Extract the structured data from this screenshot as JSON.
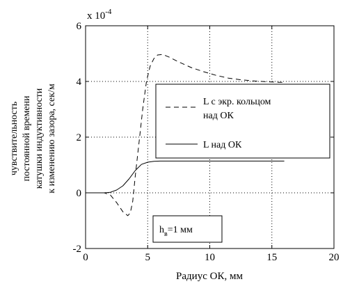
{
  "chart_data": {
    "type": "line",
    "xlabel": "Радиус ОК, мм",
    "ylabel_lines": [
      "чувствительность",
      "постоянной времени",
      "катушки индуктивности",
      "к изменению зазора, сек/м"
    ],
    "y_multiplier": "x 10",
    "y_multiplier_exp": "-4",
    "xlim": [
      0,
      20
    ],
    "ylim": [
      -2,
      6
    ],
    "x_ticks": [
      0,
      5,
      10,
      15,
      20
    ],
    "y_ticks": [
      -2,
      0,
      2,
      4,
      6
    ],
    "grid": true,
    "legend_position": "center-right",
    "series": [
      {
        "name": "L с экр. кольцом над ОК",
        "name_lines": [
          "L с экр. кольцом",
          "над ОК"
        ],
        "style": "dashed",
        "x": [
          0,
          1.5,
          2.0,
          2.5,
          3.0,
          3.4,
          3.6,
          3.8,
          4.0,
          4.3,
          4.6,
          4.9,
          5.2,
          5.5,
          5.8,
          6.2,
          6.7,
          7.5,
          8.5,
          9.5,
          10.5,
          11.5,
          12.5,
          13.5,
          14.5,
          15.5,
          16.0
        ],
        "y": [
          0,
          0,
          -0.08,
          -0.35,
          -0.68,
          -0.82,
          -0.72,
          -0.3,
          0.6,
          1.8,
          3.0,
          4.0,
          4.55,
          4.82,
          4.95,
          4.97,
          4.88,
          4.7,
          4.5,
          4.35,
          4.22,
          4.12,
          4.06,
          4.02,
          3.99,
          3.97,
          3.97
        ]
      },
      {
        "name": "L над ОК",
        "name_lines": [
          "L над ОК"
        ],
        "style": "solid",
        "x": [
          0,
          1.5,
          2.0,
          2.5,
          3.0,
          3.5,
          4.0,
          4.5,
          5.0,
          5.5,
          6.0,
          7.0,
          8.0,
          10.0,
          12.0,
          14.0,
          16.0
        ],
        "y": [
          0,
          0,
          0.02,
          0.1,
          0.25,
          0.5,
          0.8,
          1.02,
          1.1,
          1.13,
          1.14,
          1.14,
          1.14,
          1.14,
          1.14,
          1.14,
          1.14
        ]
      }
    ],
    "annotation": {
      "main": "h",
      "subscript": "в",
      "rest": "=1 мм",
      "x": 5.0,
      "y": -1.2
    }
  }
}
